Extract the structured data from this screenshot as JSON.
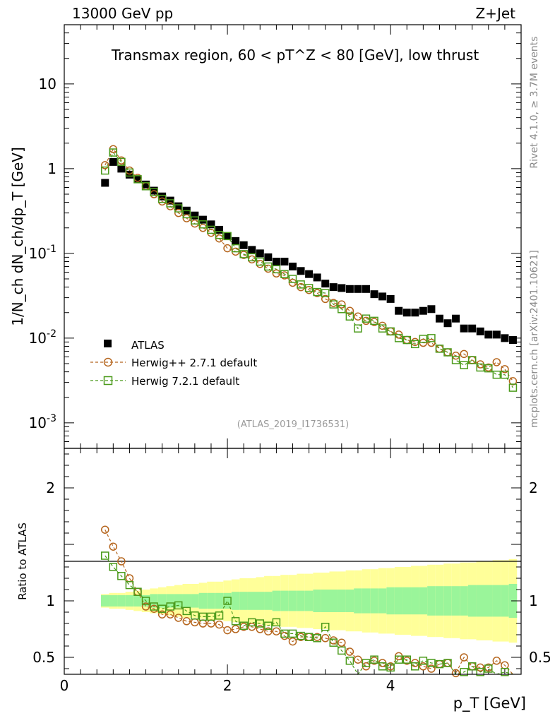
{
  "header": {
    "energy": "13000 GeV pp",
    "process": "Z+Jet"
  },
  "side_labels": {
    "rivet": "Rivet 4.1.0, ≥ 3.7M events",
    "source": "mcplots.cern.ch [arXiv:2401.10621]"
  },
  "chart_data": {
    "type": "scatter",
    "title": "Transmax region, 60 < pT^Z < 80 [GeV], low thrust",
    "analysis_id": "(ATLAS_2019_I1736531)",
    "xlabel": "p_T [GeV]",
    "ylabel": "1/N_ch dN_ch/dp_T [GeV]",
    "ratio_ylabel": "Ratio to ATLAS",
    "xlim": [
      0,
      5.6
    ],
    "ylim": [
      0.0005,
      50
    ],
    "ratio_ylim": [
      0.35,
      2.35
    ],
    "x_ticks": [
      "0",
      "2",
      "4"
    ],
    "y_ticks": [
      "10^-3",
      "10^-2",
      "10^-1",
      "1",
      "10"
    ],
    "ratio_ticks": [
      "0.5",
      "1",
      "2"
    ],
    "legend": [
      "ATLAS",
      "Herwig++ 2.7.1 default",
      "Herwig 7.2.1 default"
    ],
    "x": [
      0.5,
      0.6,
      0.7,
      0.8,
      0.9,
      1.0,
      1.1,
      1.2,
      1.3,
      1.4,
      1.5,
      1.6,
      1.7,
      1.8,
      1.9,
      2.0,
      2.1,
      2.2,
      2.3,
      2.4,
      2.5,
      2.6,
      2.7,
      2.8,
      2.9,
      3.0,
      3.1,
      3.2,
      3.3,
      3.4,
      3.5,
      3.6,
      3.7,
      3.8,
      3.9,
      4.0,
      4.1,
      4.2,
      4.3,
      4.4,
      4.5,
      4.6,
      4.7,
      4.8,
      4.9,
      5.0,
      5.1,
      5.2,
      5.3,
      5.4,
      5.5
    ],
    "series": [
      {
        "name": "ATLAS",
        "color": "#000000",
        "marker": "filled-square",
        "values": [
          0.68,
          1.2,
          1.0,
          0.85,
          0.75,
          0.65,
          0.55,
          0.47,
          0.42,
          0.36,
          0.32,
          0.28,
          0.25,
          0.22,
          0.19,
          0.16,
          0.14,
          0.125,
          0.11,
          0.1,
          0.09,
          0.08,
          0.08,
          0.07,
          0.062,
          0.057,
          0.052,
          0.044,
          0.04,
          0.039,
          0.038,
          0.038,
          0.038,
          0.033,
          0.031,
          0.029,
          0.021,
          0.02,
          0.02,
          0.021,
          0.022,
          0.017,
          0.015,
          0.017,
          0.013,
          0.013,
          0.012,
          0.011,
          0.011,
          0.01,
          0.0095
        ]
      },
      {
        "name": "Herwig++ 2.7.1 default",
        "color": "#b5651d",
        "marker": "open-circle",
        "values": [
          1.1,
          1.7,
          1.25,
          0.95,
          0.78,
          0.62,
          0.5,
          0.41,
          0.36,
          0.3,
          0.26,
          0.225,
          0.2,
          0.175,
          0.15,
          0.115,
          0.105,
          0.096,
          0.085,
          0.075,
          0.066,
          0.058,
          0.055,
          0.045,
          0.04,
          0.037,
          0.034,
          0.029,
          0.026,
          0.025,
          0.021,
          0.018,
          0.016,
          0.0155,
          0.014,
          0.012,
          0.011,
          0.0095,
          0.009,
          0.0088,
          0.0088,
          0.0075,
          0.0068,
          0.0062,
          0.0065,
          0.0055,
          0.0049,
          0.0045,
          0.0052,
          0.0043,
          0.0031
        ]
      },
      {
        "name": "Herwig 7.2.1 default",
        "color": "#4a9a1a",
        "marker": "open-square",
        "values": [
          0.95,
          1.55,
          1.2,
          0.9,
          0.75,
          0.62,
          0.53,
          0.44,
          0.39,
          0.34,
          0.29,
          0.245,
          0.22,
          0.19,
          0.165,
          0.16,
          0.115,
          0.098,
          0.09,
          0.08,
          0.07,
          0.065,
          0.057,
          0.05,
          0.043,
          0.039,
          0.035,
          0.034,
          0.025,
          0.022,
          0.018,
          0.013,
          0.017,
          0.016,
          0.013,
          0.012,
          0.01,
          0.0095,
          0.0085,
          0.0098,
          0.01,
          0.0075,
          0.0068,
          0.0055,
          0.0048,
          0.0055,
          0.0045,
          0.0044,
          0.0037,
          0.0037,
          0.0026
        ]
      }
    ],
    "ratios": [
      {
        "name": "Herwig++ 2.7.1 default",
        "values": [
          1.63,
          1.48,
          1.35,
          1.2,
          1.08,
          0.95,
          0.93,
          0.88,
          0.88,
          0.85,
          0.82,
          0.81,
          0.8,
          0.8,
          0.79,
          0.74,
          0.75,
          0.77,
          0.77,
          0.75,
          0.73,
          0.73,
          0.69,
          0.64,
          0.68,
          0.68,
          0.68,
          0.67,
          0.65,
          0.63,
          0.55,
          0.48,
          0.42,
          0.47,
          0.45,
          0.42,
          0.51,
          0.47,
          0.45,
          0.42,
          0.4,
          0.44,
          0.45,
          0.36,
          0.5,
          0.42,
          0.41,
          0.41,
          0.47,
          0.43,
          0.33
        ]
      },
      {
        "name": "Herwig 7.2.1 default",
        "values": [
          1.4,
          1.3,
          1.22,
          1.14,
          1.08,
          1.0,
          0.95,
          0.93,
          0.95,
          0.96,
          0.91,
          0.87,
          0.86,
          0.86,
          0.87,
          1.0,
          0.82,
          0.78,
          0.81,
          0.8,
          0.78,
          0.81,
          0.71,
          0.71,
          0.69,
          0.68,
          0.67,
          0.77,
          0.63,
          0.56,
          0.47,
          0.34,
          0.45,
          0.48,
          0.42,
          0.41,
          0.48,
          0.48,
          0.42,
          0.47,
          0.45,
          0.44,
          0.45,
          0.32,
          0.37,
          0.42,
          0.37,
          0.4,
          0.34,
          0.37,
          0.27
        ]
      }
    ],
    "band_inner": [
      0.05,
      0.05,
      0.05,
      0.05,
      0.05,
      0.05,
      0.06,
      0.06,
      0.06,
      0.06,
      0.06,
      0.06,
      0.07,
      0.07,
      0.07,
      0.07,
      0.08,
      0.08,
      0.08,
      0.08,
      0.08,
      0.09,
      0.09,
      0.09,
      0.09,
      0.09,
      0.1,
      0.1,
      0.1,
      0.1,
      0.1,
      0.11,
      0.11,
      0.11,
      0.11,
      0.12,
      0.12,
      0.12,
      0.12,
      0.12,
      0.13,
      0.13,
      0.13,
      0.13,
      0.13,
      0.14,
      0.14,
      0.14,
      0.14,
      0.14,
      0.15
    ],
    "band_outer": [
      0.06,
      0.07,
      0.07,
      0.08,
      0.09,
      0.1,
      0.11,
      0.12,
      0.13,
      0.14,
      0.15,
      0.15,
      0.16,
      0.17,
      0.17,
      0.18,
      0.19,
      0.2,
      0.2,
      0.21,
      0.22,
      0.22,
      0.23,
      0.23,
      0.24,
      0.24,
      0.25,
      0.25,
      0.26,
      0.26,
      0.27,
      0.27,
      0.28,
      0.28,
      0.29,
      0.29,
      0.3,
      0.3,
      0.31,
      0.31,
      0.32,
      0.32,
      0.33,
      0.33,
      0.34,
      0.34,
      0.35,
      0.35,
      0.36,
      0.36,
      0.37
    ],
    "band_colors": {
      "inner": "#9af59a",
      "outer": "#ffff99"
    }
  }
}
